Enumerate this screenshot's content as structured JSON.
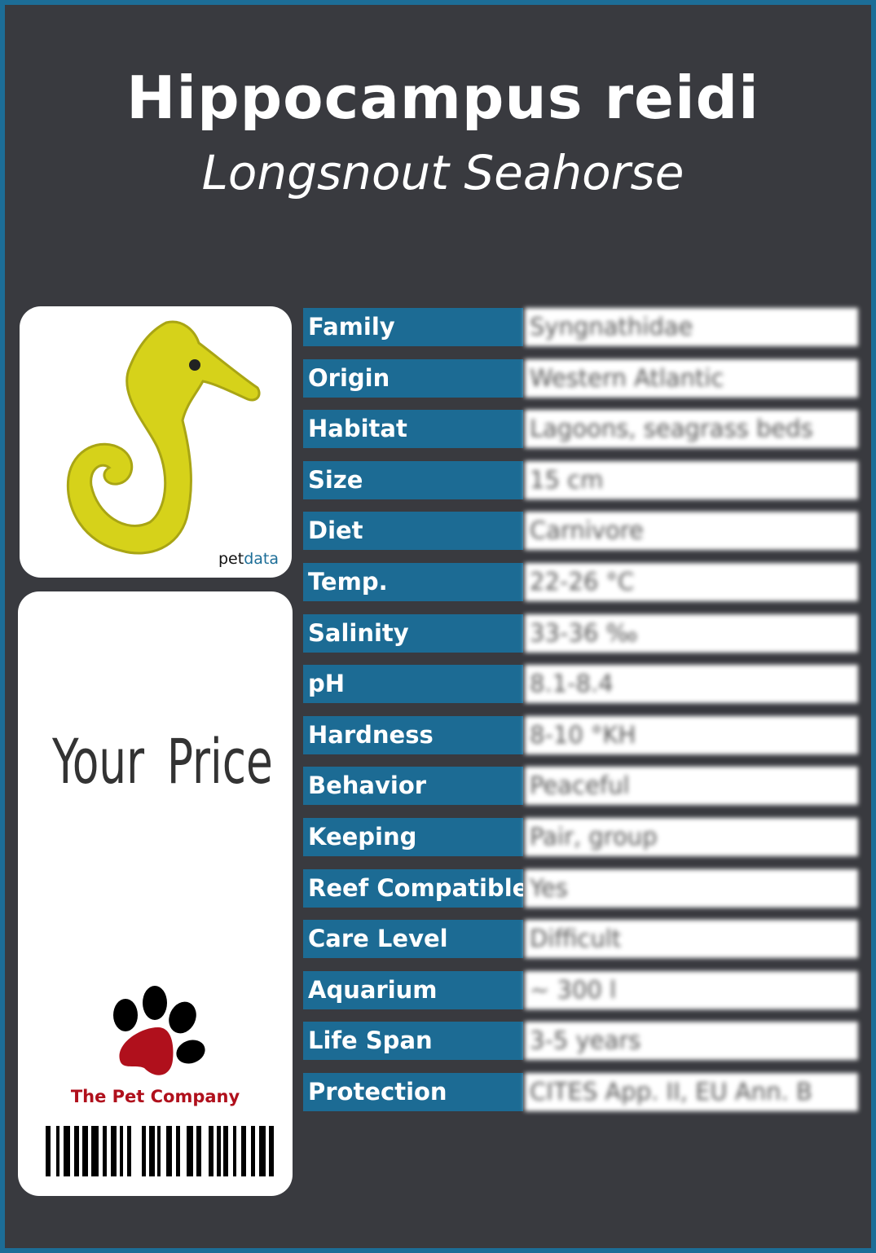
{
  "header": {
    "title": "Hippocampus reidi",
    "subtitle": "Longsnout Seahorse"
  },
  "photo": {
    "brand_prefix": "pet",
    "brand_suffix": "data",
    "subject": "yellow seahorse"
  },
  "price_tag": {
    "label": "Your Price",
    "company": "The Pet Company"
  },
  "colors": {
    "background": "#393a3f",
    "border": "#1c6d97",
    "label_fill": "#1c6b94",
    "company_red": "#b0101c"
  },
  "rows": [
    {
      "label": "Family",
      "value": "Syngnathidae"
    },
    {
      "label": "Origin",
      "value": "Western Atlantic"
    },
    {
      "label": "Habitat",
      "value": "Lagoons, seagrass beds"
    },
    {
      "label": "Size",
      "value": "15 cm"
    },
    {
      "label": "Diet",
      "value": "Carnivore"
    },
    {
      "label": "Temp.",
      "value": "22-26 °C"
    },
    {
      "label": "Salinity",
      "value": "33-36 ‰"
    },
    {
      "label": "pH",
      "value": "8.1-8.4"
    },
    {
      "label": "Hardness",
      "value": "8-10 °KH"
    },
    {
      "label": "Behavior",
      "value": "Peaceful"
    },
    {
      "label": "Keeping",
      "value": "Pair, group"
    },
    {
      "label": "Reef Compatible",
      "value": "Yes"
    },
    {
      "label": "Care Level",
      "value": "Difficult"
    },
    {
      "label": "Aquarium",
      "value": "~ 300 l"
    },
    {
      "label": "Life Span",
      "value": "3-5 years"
    },
    {
      "label": "Protection",
      "value": "CITES App. II, EU Ann. B"
    }
  ]
}
